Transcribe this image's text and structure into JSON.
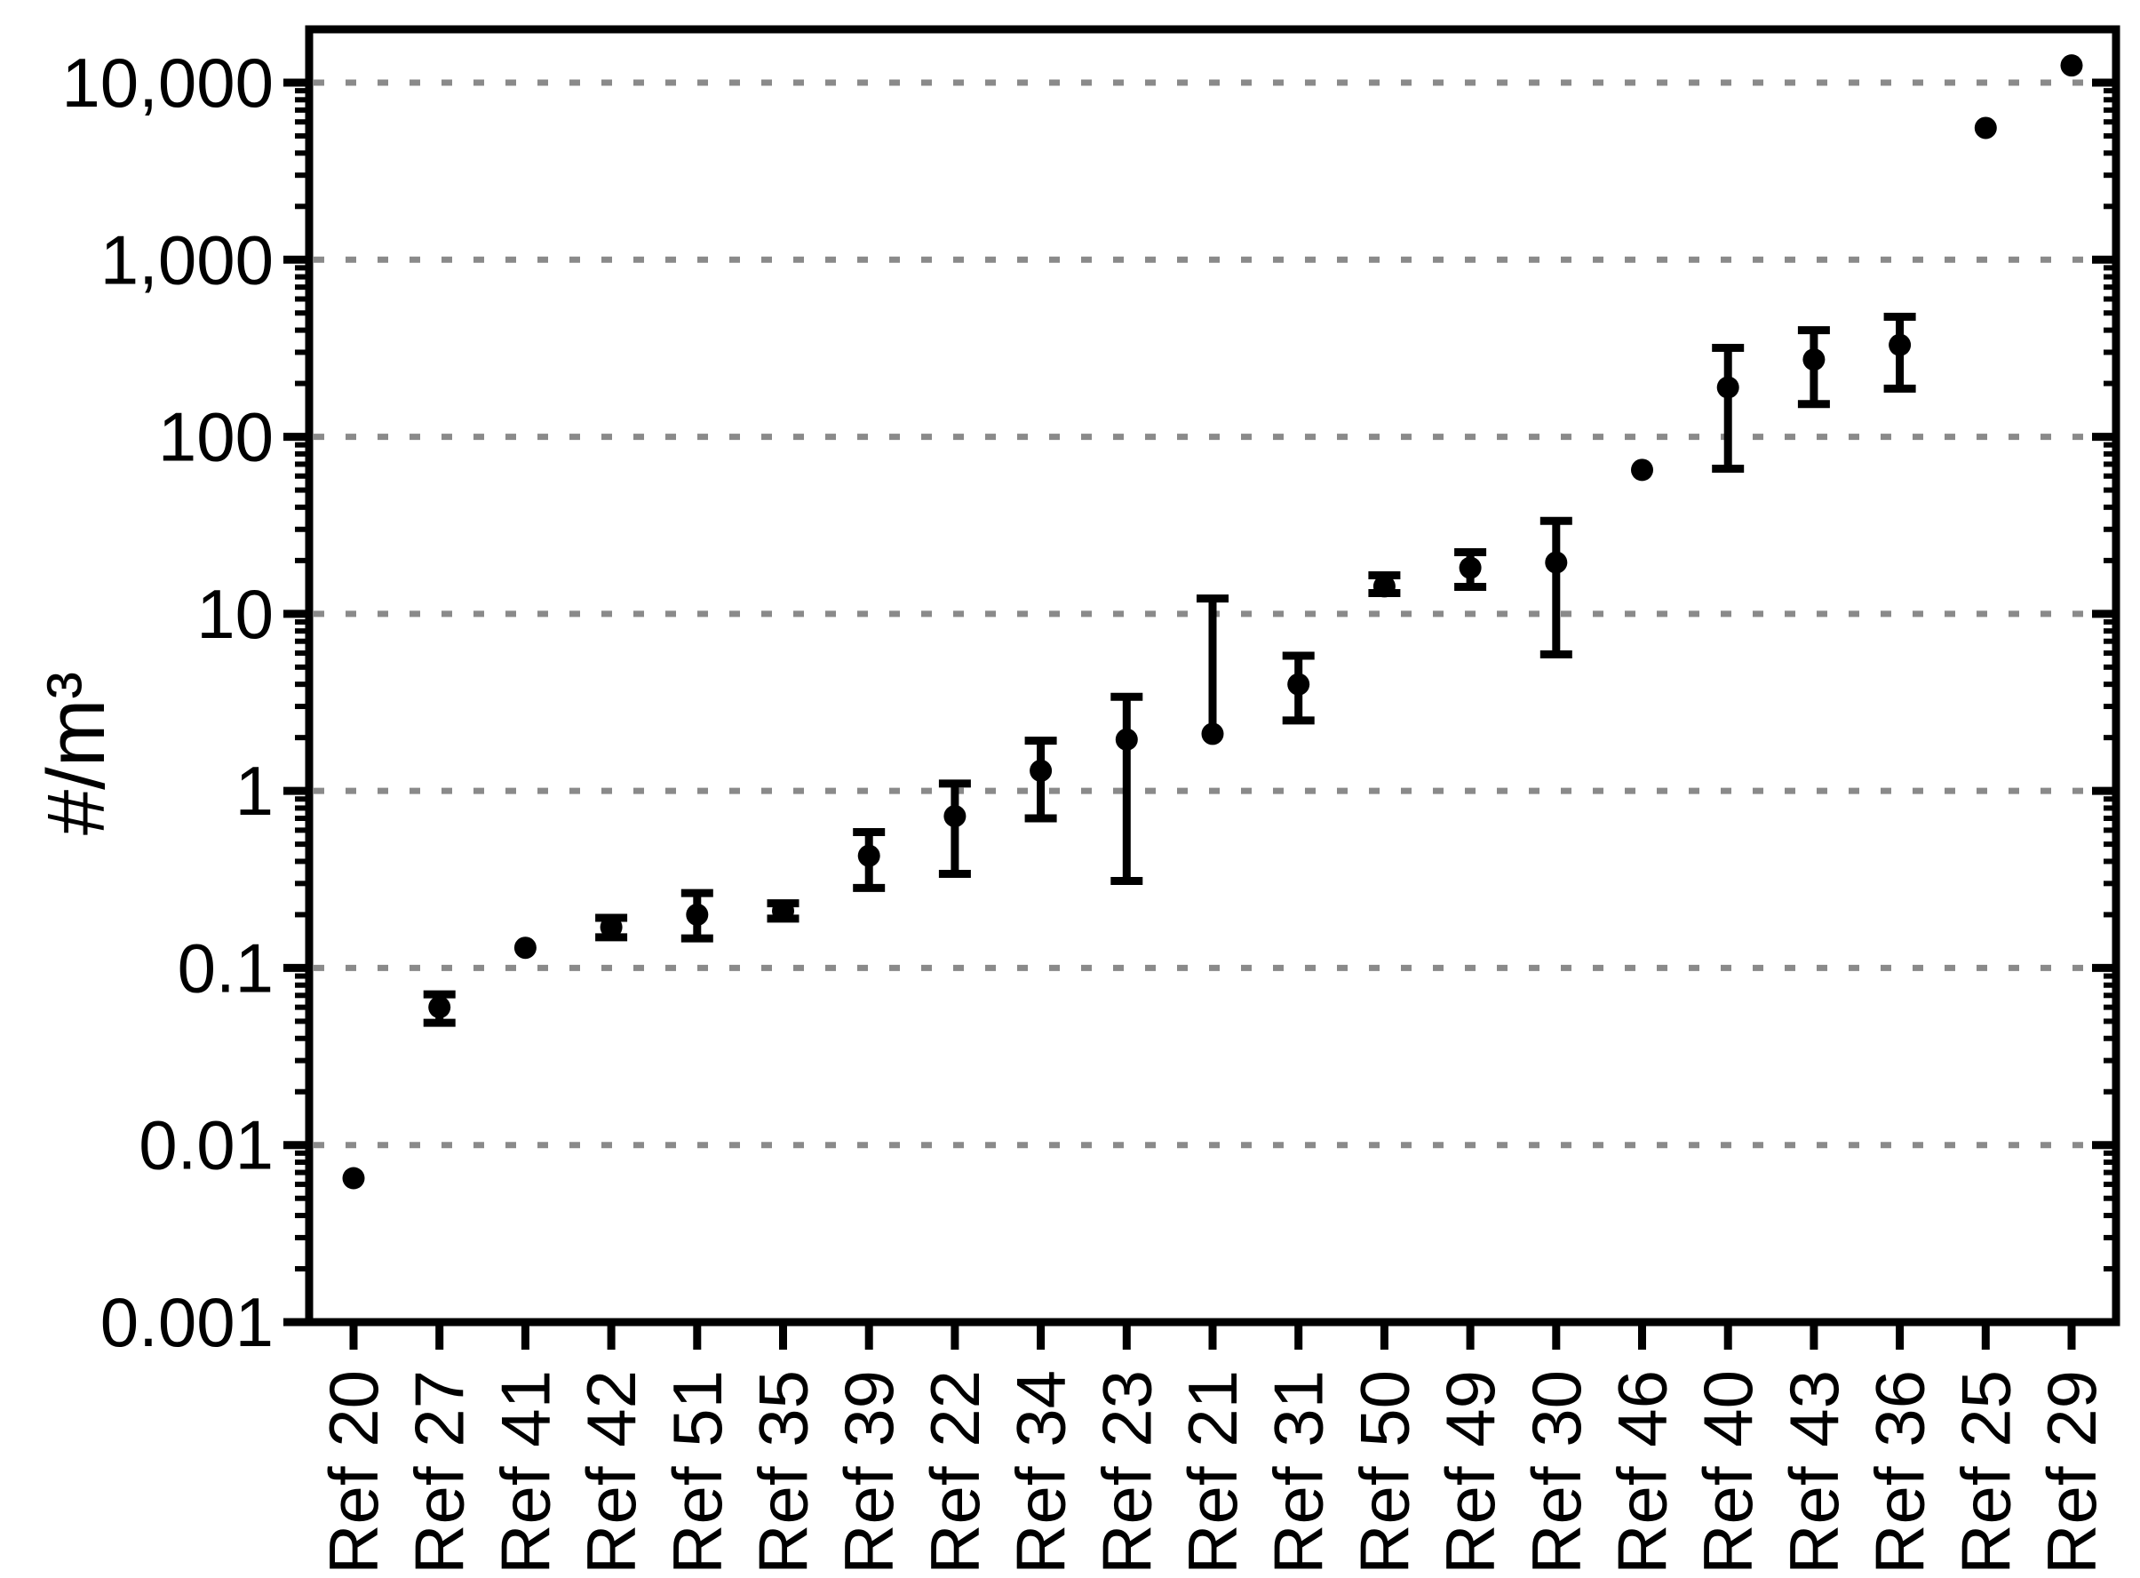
{
  "figure": {
    "background": "#ffffff"
  },
  "chart_data": {
    "type": "scatter",
    "title": "",
    "xlabel": "",
    "ylabel": "#/m³",
    "y_scale": "log",
    "ylim": [
      0.001,
      20000
    ],
    "grid": "horizontal dashed lines at each decade",
    "legend": "none",
    "marker": "filled black circle with error bars",
    "colors": {
      "marker": "#000000",
      "axis": "#000000",
      "grid": "#8a8a8a",
      "background": "#ffffff"
    },
    "y_ticks": [
      {
        "value": 10000,
        "label": "10,000"
      },
      {
        "value": 1000,
        "label": "1,000"
      },
      {
        "value": 100,
        "label": "100"
      },
      {
        "value": 10,
        "label": "10"
      },
      {
        "value": 1,
        "label": "1"
      },
      {
        "value": 0.1,
        "label": "0.1"
      },
      {
        "value": 0.01,
        "label": "0.01"
      },
      {
        "value": 0.001,
        "label": "0.001"
      }
    ],
    "categories": [
      "Ref 20",
      "Ref 27",
      "Ref 41",
      "Ref 42",
      "Ref 51",
      "Ref 35",
      "Ref 39",
      "Ref 22",
      "Ref 34",
      "Ref 23",
      "Ref 21",
      "Ref 31",
      "Ref 50",
      "Ref 49",
      "Ref 30",
      "Ref 46",
      "Ref 40",
      "Ref 43",
      "Ref 36",
      "Ref 25",
      "Ref 29"
    ],
    "points": [
      {
        "label": "Ref 20",
        "y": 0.0065,
        "y_lo": null,
        "y_hi": null
      },
      {
        "label": "Ref 27",
        "y": 0.06,
        "y_lo": 0.049,
        "y_hi": 0.071
      },
      {
        "label": "Ref 41",
        "y": 0.13,
        "y_lo": null,
        "y_hi": null
      },
      {
        "label": "Ref 42",
        "y": 0.17,
        "y_lo": 0.149,
        "y_hi": 0.192
      },
      {
        "label": "Ref 51",
        "y": 0.2,
        "y_lo": 0.147,
        "y_hi": 0.265
      },
      {
        "label": "Ref 35",
        "y": 0.21,
        "y_lo": 0.19,
        "y_hi": 0.232
      },
      {
        "label": "Ref 39",
        "y": 0.43,
        "y_lo": 0.283,
        "y_hi": 0.585
      },
      {
        "label": "Ref 22",
        "y": 0.72,
        "y_lo": 0.34,
        "y_hi": 1.1
      },
      {
        "label": "Ref 34",
        "y": 1.3,
        "y_lo": 0.7,
        "y_hi": 1.92
      },
      {
        "label": "Ref 23",
        "y": 1.95,
        "y_lo": 0.31,
        "y_hi": 3.4
      },
      {
        "label": "Ref 21",
        "y": 2.1,
        "y_lo": null,
        "y_hi": 12.2
      },
      {
        "label": "Ref 31",
        "y": 4.0,
        "y_lo": 2.5,
        "y_hi": 5.8
      },
      {
        "label": "Ref 50",
        "y": 14.3,
        "y_lo": 13.1,
        "y_hi": 16.5
      },
      {
        "label": "Ref 49",
        "y": 18.2,
        "y_lo": 14.2,
        "y_hi": 22.3
      },
      {
        "label": "Ref 30",
        "y": 19.5,
        "y_lo": 5.9,
        "y_hi": 33.5
      },
      {
        "label": "Ref 46",
        "y": 65,
        "y_lo": null,
        "y_hi": null
      },
      {
        "label": "Ref 40",
        "y": 190,
        "y_lo": 66,
        "y_hi": 318
      },
      {
        "label": "Ref 43",
        "y": 273,
        "y_lo": 153,
        "y_hi": 400
      },
      {
        "label": "Ref 36",
        "y": 330,
        "y_lo": 187,
        "y_hi": 476
      },
      {
        "label": "Ref 25",
        "y": 5550,
        "y_lo": null,
        "y_hi": null
      },
      {
        "label": "Ref 29",
        "y": 12500,
        "y_lo": null,
        "y_hi": null
      }
    ]
  }
}
